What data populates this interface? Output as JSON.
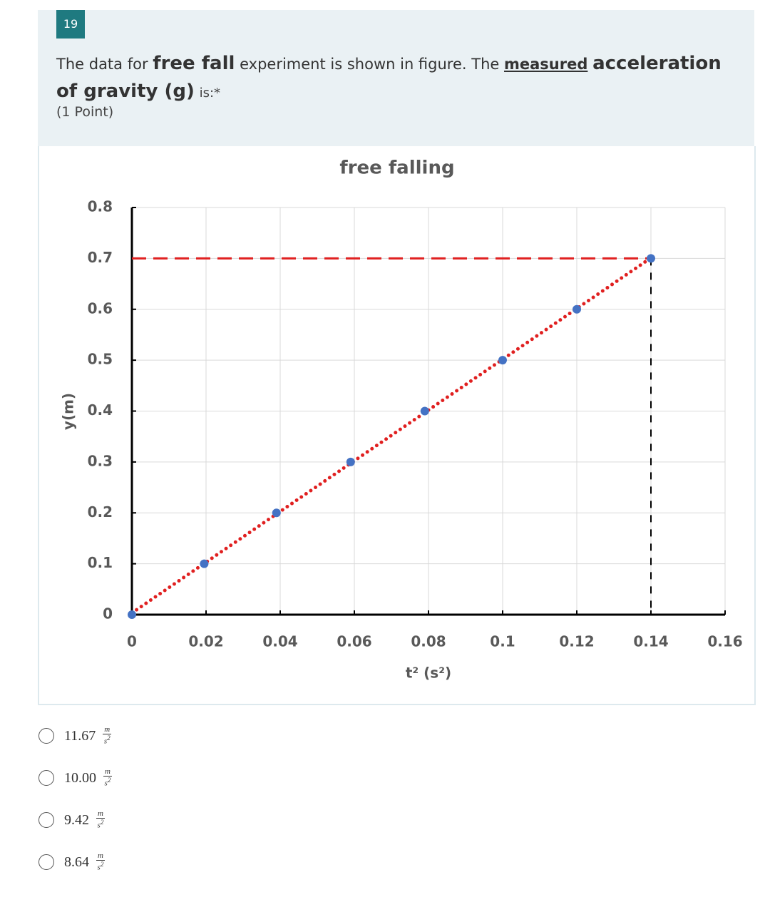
{
  "question": {
    "number": "19",
    "parts": [
      "The data for",
      "free fall",
      "experiment is shown in figure. The",
      "measured",
      "acceleration of gravity (g)",
      "is:",
      "*"
    ],
    "points": "(1 Point)",
    "unit": {
      "numerator": "m",
      "denominator": "s",
      "exponent": "2"
    },
    "options": [
      "11.67",
      "10.00",
      "9.42",
      "8.64"
    ]
  },
  "chart_data": {
    "type": "scatter",
    "title": "free falling",
    "x_label": "t² (s²)",
    "y_label": "y(m)",
    "x": [
      0,
      0.0195,
      0.039,
      0.059,
      0.079,
      0.1,
      0.12,
      0.14
    ],
    "series": [
      {
        "name": "y",
        "color": "#4472c4",
        "values": [
          0,
          0.1,
          0.2,
          0.3,
          0.4,
          0.5,
          0.6,
          0.7
        ]
      }
    ],
    "trendline": {
      "color": "#e02020"
    },
    "xlim": [
      0,
      0.16
    ],
    "xticks": [
      0,
      0.02,
      0.04,
      0.06,
      0.08,
      0.1,
      0.12,
      0.14,
      0.16
    ],
    "ylim": [
      0,
      0.8
    ],
    "yticks": [
      0,
      0.1,
      0.2,
      0.3,
      0.4,
      0.5,
      0.6,
      0.7,
      0.8
    ],
    "grid": true
  }
}
